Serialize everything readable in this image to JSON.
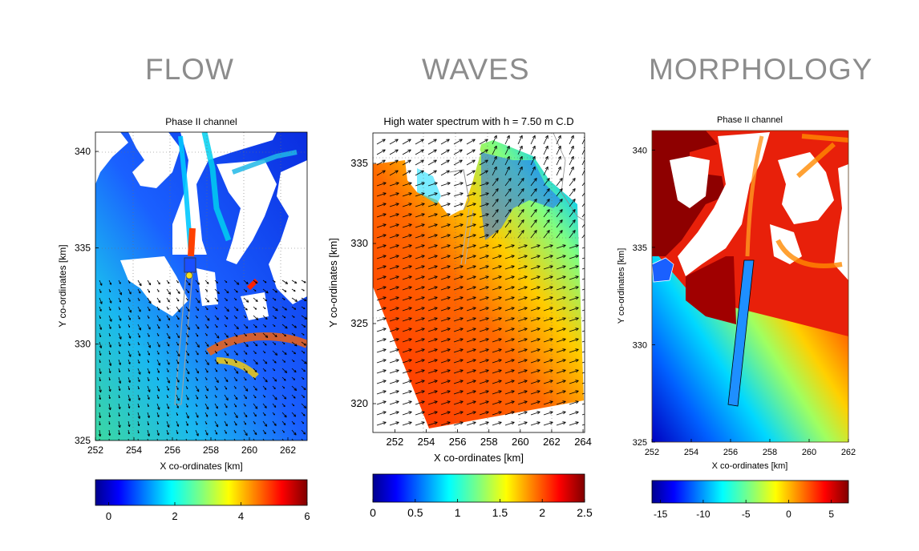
{
  "sections": {
    "flow": "FLOW",
    "waves": "WAVES",
    "morphology": "MORPHOLOGY"
  },
  "colors": {
    "land": "#ffffff",
    "coast": "#8c8c8c",
    "grid": "#6e6e6e",
    "vector": "#000000",
    "channel": "#1e90ff",
    "marker": "#f5e21a"
  },
  "chart_data": [
    {
      "type": "heatmap",
      "title": "Phase II channel",
      "xlabel": "X co-ordinates [km]",
      "ylabel": "Y co-ordinates [km]",
      "xlim": [
        252,
        263
      ],
      "ylim": [
        325,
        341
      ],
      "xticks": [
        252,
        254,
        256,
        258,
        260,
        262
      ],
      "yticks": [
        325,
        330,
        335,
        340
      ],
      "grid": true,
      "vectors": true,
      "colorbar": {
        "colormap": "jet",
        "min": -0.4,
        "max": 6,
        "ticks": [
          0,
          2,
          4,
          6
        ]
      }
    },
    {
      "type": "heatmap",
      "title": "High water spectrum with h = 7.50 m C.D",
      "xlabel": "X co-ordinates [km]",
      "ylabel": "Y co-ordinates [km]",
      "xlim": [
        250.6,
        264.1
      ],
      "ylim": [
        318.2,
        336.9
      ],
      "xticks": [
        252,
        254,
        256,
        258,
        260,
        262,
        264
      ],
      "yticks": [
        320,
        325,
        330,
        335
      ],
      "grid": true,
      "vectors": true,
      "colorbar": {
        "colormap": "jet",
        "min": 0,
        "max": 2.5,
        "ticks": [
          0,
          0.5,
          1,
          1.5,
          2,
          2.5
        ]
      }
    },
    {
      "type": "heatmap",
      "title": "Phase II channel",
      "xlabel": "X co-ordinates [km]",
      "ylabel": "Y co-ordinates [km]",
      "xlim": [
        252,
        262
      ],
      "ylim": [
        325,
        341
      ],
      "xticks": [
        252,
        254,
        256,
        258,
        260,
        262
      ],
      "yticks": [
        325,
        330,
        335,
        340
      ],
      "grid": false,
      "vectors": false,
      "colorbar": {
        "colormap": "jet",
        "min": -16,
        "max": 7,
        "ticks": [
          -15,
          -10,
          -5,
          0,
          5
        ]
      }
    }
  ]
}
